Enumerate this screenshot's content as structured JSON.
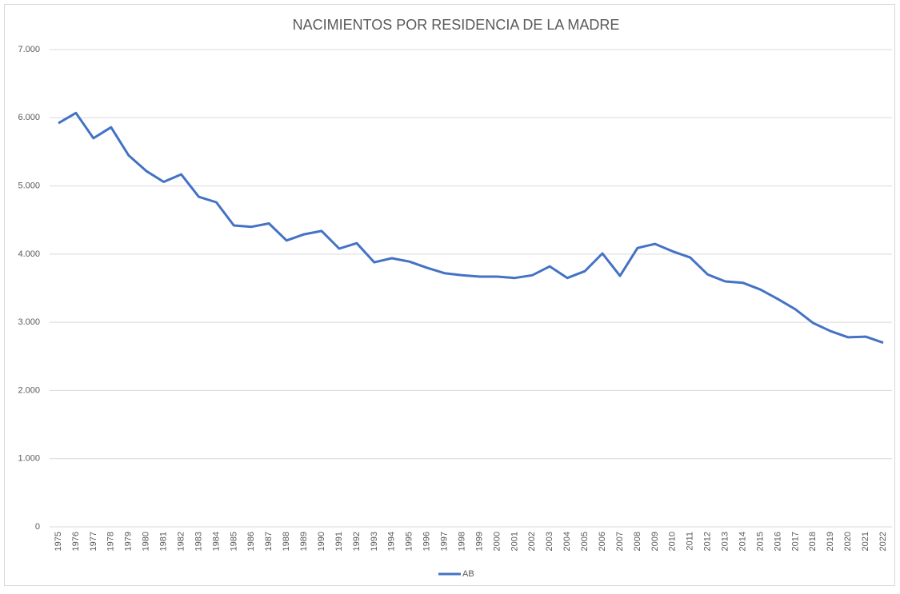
{
  "chart_data": {
    "type": "line",
    "title": "NACIMIENTOS POR RESIDENCIA DE LA MADRE",
    "categories": [
      "1975",
      "1976",
      "1977",
      "1978",
      "1979",
      "1980",
      "1981",
      "1982",
      "1983",
      "1984",
      "1985",
      "1986",
      "1987",
      "1988",
      "1989",
      "1990",
      "1991",
      "1992",
      "1993",
      "1994",
      "1995",
      "1996",
      "1997",
      "1998",
      "1999",
      "2000",
      "2001",
      "2002",
      "2003",
      "2004",
      "2005",
      "2006",
      "2007",
      "2008",
      "2009",
      "2010",
      "2011",
      "2012",
      "2013",
      "2014",
      "2015",
      "2016",
      "2017",
      "2018",
      "2019",
      "2020",
      "2021",
      "2022"
    ],
    "series": [
      {
        "name": "AB",
        "color": "#4472c4",
        "values": [
          5920,
          6070,
          5700,
          5860,
          5450,
          5220,
          5060,
          5170,
          4840,
          4760,
          4420,
          4400,
          4450,
          4200,
          4290,
          4340,
          4080,
          4160,
          3880,
          3940,
          3890,
          3800,
          3720,
          3690,
          3670,
          3670,
          3650,
          3690,
          3820,
          3650,
          3750,
          4010,
          3680,
          4090,
          4150,
          4040,
          3950,
          3700,
          3600,
          3580,
          3480,
          3340,
          3190,
          2990,
          2870,
          2780,
          2790,
          2700
        ]
      }
    ],
    "ylim": [
      0,
      7000
    ],
    "yticks": [
      0,
      {
        "value": 1000,
        "label": "1.000"
      },
      {
        "value": 2000,
        "label": "2.000"
      },
      {
        "value": 3000,
        "label": "3.000"
      },
      {
        "value": 4000,
        "label": "4.000"
      },
      {
        "value": 5000,
        "label": "5.000"
      },
      {
        "value": 6000,
        "label": "6.000"
      },
      {
        "value": 7000,
        "label": "7.000"
      }
    ],
    "grid": true,
    "legend": "bottom"
  }
}
